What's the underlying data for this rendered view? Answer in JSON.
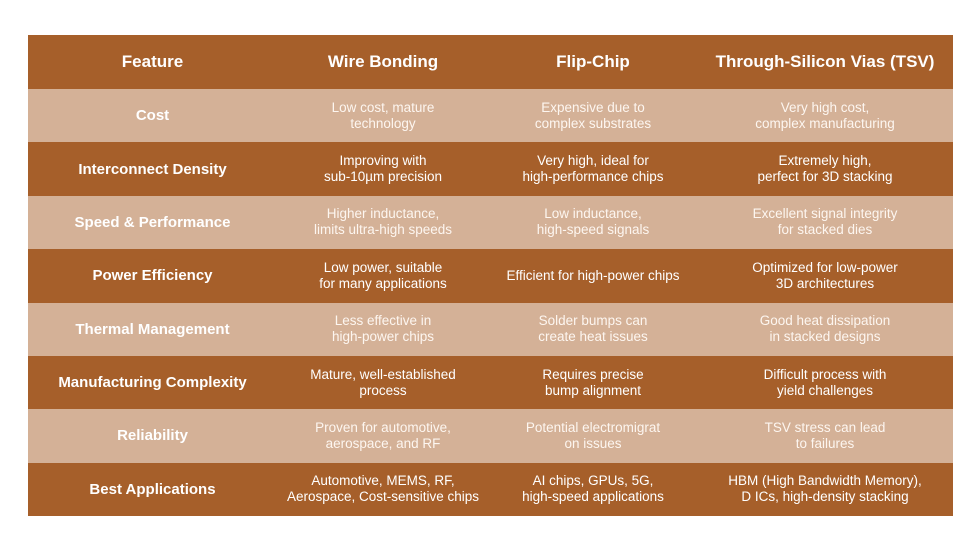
{
  "table": {
    "headers": [
      "Feature",
      "Wire Bonding",
      "Flip-Chip",
      "Through-Silicon Vias (TSV)"
    ],
    "rows": [
      {
        "feature": "Cost",
        "cells": [
          [
            "Low cost, mature",
            "technology"
          ],
          [
            "Expensive due to",
            "complex substrates"
          ],
          [
            "Very high cost,",
            "complex manufacturing"
          ]
        ]
      },
      {
        "feature": "Interconnect Density",
        "cells": [
          [
            "Improving with",
            "sub-10µm precision"
          ],
          [
            "Very high, ideal for",
            "high-performance chips"
          ],
          [
            "Extremely high,",
            "perfect for 3D stacking"
          ]
        ]
      },
      {
        "feature": "Speed & Performance",
        "cells": [
          [
            "Higher inductance,",
            "limits ultra-high speeds"
          ],
          [
            "Low inductance,",
            "high-speed signals"
          ],
          [
            "Excellent signal integrity",
            "for stacked dies"
          ]
        ]
      },
      {
        "feature": "Power Efficiency",
        "cells": [
          [
            "Low power, suitable",
            "for many applications"
          ],
          [
            "Efficient for high-power chips"
          ],
          [
            "Optimized for low-power",
            "3D architectures"
          ]
        ]
      },
      {
        "feature": "Thermal Management",
        "cells": [
          [
            "Less effective in",
            "high-power chips"
          ],
          [
            "Solder bumps can",
            "create heat issues"
          ],
          [
            "Good heat dissipation",
            "in stacked designs"
          ]
        ]
      },
      {
        "feature": "Manufacturing Complexity",
        "cells": [
          [
            "Mature, well-established",
            "process"
          ],
          [
            "Requires precise",
            "bump alignment"
          ],
          [
            "Difficult process with",
            "yield challenges"
          ]
        ]
      },
      {
        "feature": "Reliability",
        "cells": [
          [
            "Proven for automotive,",
            "aerospace, and RF"
          ],
          [
            "Potential electromigrat",
            "on issues"
          ],
          [
            "TSV stress can lead",
            "to failures"
          ]
        ]
      },
      {
        "feature": "Best Applications",
        "cells": [
          [
            "Automotive, MEMS, RF,",
            "Aerospace, Cost-sensitive chips"
          ],
          [
            "AI chips, GPUs, 5G,",
            "high-speed applications"
          ],
          [
            "HBM (High Bandwidth Memory),",
            "D ICs, high-density stacking"
          ]
        ]
      }
    ],
    "colors": {
      "dark_row": "#a65f2a",
      "light_row": "#d4b197",
      "text": "#ffffff"
    }
  }
}
